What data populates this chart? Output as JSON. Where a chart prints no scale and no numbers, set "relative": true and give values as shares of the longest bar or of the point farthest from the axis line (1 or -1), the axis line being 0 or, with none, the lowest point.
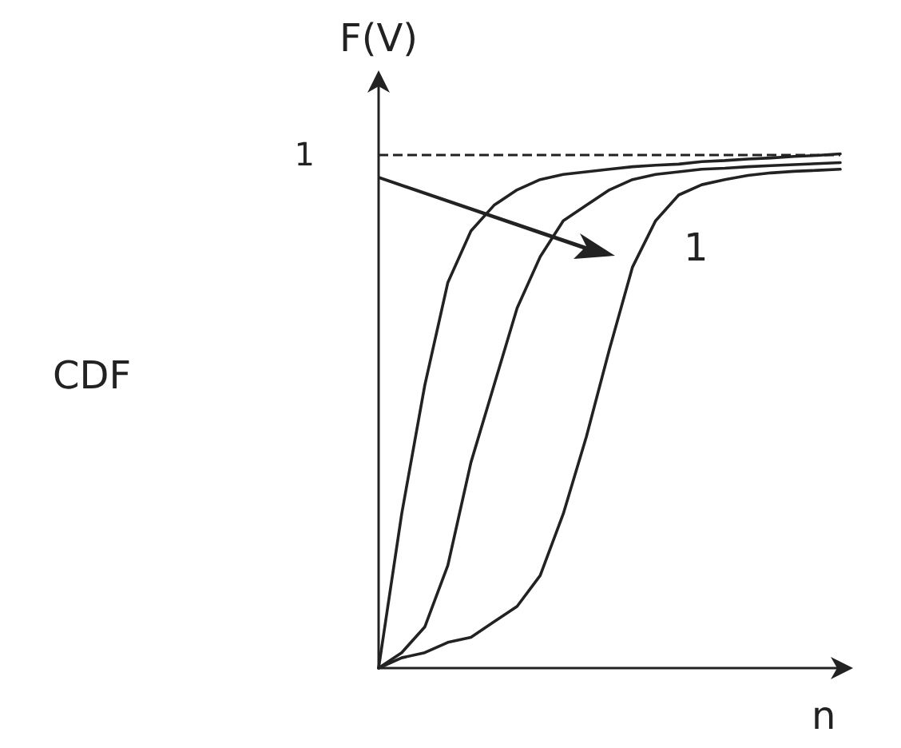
{
  "chart_data": {
    "type": "line",
    "relative": true,
    "ylabel": "F(V)",
    "xlabel": "n",
    "annotations": [
      "CDF",
      "1"
    ],
    "categories": [
      null,
      null,
      null,
      null,
      null,
      null,
      null,
      null,
      null,
      null,
      null,
      null,
      null,
      null,
      null,
      null,
      null,
      null,
      null,
      null,
      null
    ],
    "series": [
      {
        "color": "#222222",
        "values": [
          0,
          0.3,
          0.55,
          0.75,
          0.85,
          0.9,
          0.93,
          0.95,
          0.96,
          0.965,
          0.97,
          0.975,
          0.978,
          0.98,
          0.985,
          0.987,
          0.99,
          0.992,
          0.995,
          0.997,
          1
        ]
      },
      {
        "color": "#222222",
        "values": [
          0,
          0.03,
          0.08,
          0.2,
          0.4,
          0.55,
          0.7,
          0.8,
          0.87,
          0.9,
          0.93,
          0.95,
          0.96,
          0.965,
          0.97,
          0.972,
          0.975,
          0.977,
          0.979,
          0.981,
          0.983
        ]
      },
      {
        "color": "#222222",
        "values": [
          0,
          0.02,
          0.03,
          0.05,
          0.06,
          0.09,
          0.12,
          0.18,
          0.3,
          0.45,
          0.62,
          0.78,
          0.87,
          0.92,
          0.94,
          0.95,
          0.958,
          0.963,
          0.966,
          0.968,
          0.97
        ]
      }
    ],
    "ref_lines": [
      {
        "axis": "y",
        "value": 1,
        "label": "1",
        "line_style": "dashed"
      }
    ],
    "grid": false,
    "marker": "none",
    "line_style": "solid"
  }
}
